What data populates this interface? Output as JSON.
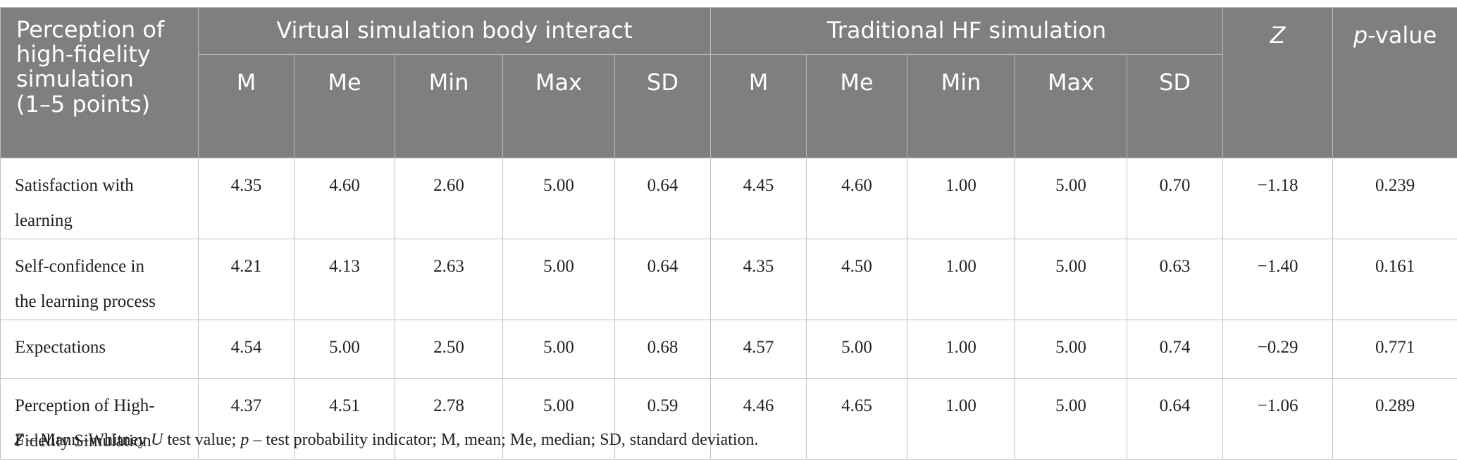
{
  "header": {
    "stub_label": "Perception of high-fidelity simulation (1–5 points)",
    "stub_lines": [
      "Perception of",
      "high-fidelity",
      "simulation",
      "(1–5 points)"
    ],
    "group_virtual": "Virtual simulation body interact",
    "group_traditional": "Traditional HF simulation",
    "z_label": "Z",
    "p_italic": "p",
    "p_rest": "-value",
    "sub_columns": [
      "M",
      "Me",
      "Min",
      "Max",
      "SD"
    ]
  },
  "rows": [
    {
      "label_lines": [
        "Satisfaction with",
        "learning"
      ],
      "virtual": [
        "4.35",
        "4.60",
        "2.60",
        "5.00",
        "0.64"
      ],
      "traditional": [
        "4.45",
        "4.60",
        "1.00",
        "5.00",
        "0.70"
      ],
      "z": "−1.18",
      "p": "0.239"
    },
    {
      "label_lines": [
        "Self-confidence in",
        "the learning process"
      ],
      "virtual": [
        "4.21",
        "4.13",
        "2.63",
        "5.00",
        "0.64"
      ],
      "traditional": [
        "4.35",
        "4.50",
        "1.00",
        "5.00",
        "0.63"
      ],
      "z": "−1.40",
      "p": "0.161"
    },
    {
      "label_lines": [
        "Expectations"
      ],
      "virtual": [
        "4.54",
        "5.00",
        "2.50",
        "5.00",
        "0.68"
      ],
      "traditional": [
        "4.57",
        "5.00",
        "1.00",
        "5.00",
        "0.74"
      ],
      "z": "−0.29",
      "p": "0.771"
    },
    {
      "label_lines": [
        "Perception of High-",
        "Fidelity Simulation"
      ],
      "virtual": [
        "4.37",
        "4.51",
        "2.78",
        "5.00",
        "0.59"
      ],
      "traditional": [
        "4.46",
        "4.65",
        "1.00",
        "5.00",
        "0.64"
      ],
      "z": "−1.06",
      "p": "0.289"
    }
  ],
  "footnote": {
    "z_italic": "Z",
    "part1": " – Mann–Whitney ",
    "u_italic": "U",
    "part2": " test value; ",
    "p_italic": "p",
    "part3": " – test probability indicator; M, mean; Me, median; SD, standard deviation."
  }
}
